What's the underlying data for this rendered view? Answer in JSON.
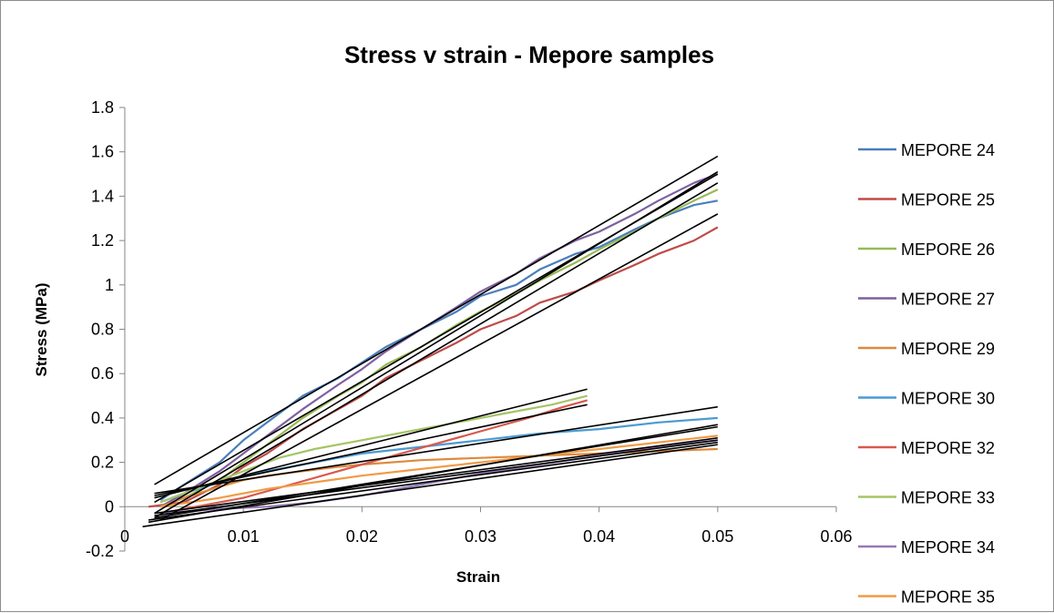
{
  "chart_data": {
    "type": "line",
    "title": "Stress v strain - Mepore samples",
    "xlabel": "Strain",
    "ylabel": "Stress (MPa)",
    "xlim": [
      0,
      0.06
    ],
    "ylim": [
      -0.2,
      1.8
    ],
    "x_ticks": [
      0,
      0.01,
      0.02,
      0.03,
      0.04,
      0.05,
      0.06
    ],
    "x_tick_labels": [
      "0",
      "0.01",
      "0.02",
      "0.03",
      "0.04",
      "0.05",
      "0.06"
    ],
    "y_ticks": [
      -0.2,
      0,
      0.2,
      0.4,
      0.6,
      0.8,
      1,
      1.2,
      1.4,
      1.6,
      1.8
    ],
    "y_tick_labels": [
      "-0.2",
      "0",
      "0.2",
      "0.4",
      "0.6",
      "0.8",
      "1",
      "1.2",
      "1.4",
      "1.6",
      "1.8"
    ],
    "grid": false,
    "legend_position": "right",
    "series": [
      {
        "name": "MEPORE 24",
        "color": "#4a7ebb",
        "x": [
          0.003,
          0.005,
          0.008,
          0.01,
          0.012,
          0.015,
          0.018,
          0.02,
          0.022,
          0.025,
          0.028,
          0.03,
          0.033,
          0.035,
          0.038,
          0.04,
          0.043,
          0.045,
          0.048,
          0.05
        ],
        "y": [
          0.03,
          0.1,
          0.2,
          0.3,
          0.38,
          0.5,
          0.58,
          0.65,
          0.72,
          0.8,
          0.88,
          0.95,
          1.0,
          1.07,
          1.14,
          1.17,
          1.25,
          1.3,
          1.36,
          1.38
        ]
      },
      {
        "name": "MEPORE 25",
        "color": "#be4b48",
        "x": [
          0.002,
          0.005,
          0.008,
          0.01,
          0.012,
          0.015,
          0.018,
          0.02,
          0.022,
          0.025,
          0.028,
          0.03,
          0.033,
          0.035,
          0.038,
          0.04,
          0.043,
          0.045,
          0.048,
          0.05
        ],
        "y": [
          0.0,
          0.02,
          0.1,
          0.18,
          0.24,
          0.35,
          0.44,
          0.5,
          0.58,
          0.66,
          0.74,
          0.8,
          0.86,
          0.92,
          0.97,
          1.02,
          1.09,
          1.14,
          1.2,
          1.26
        ]
      },
      {
        "name": "MEPORE 26",
        "color": "#98b954",
        "x": [
          0.003,
          0.005,
          0.008,
          0.01,
          0.012,
          0.015,
          0.018,
          0.02,
          0.022,
          0.025,
          0.028,
          0.03,
          0.033,
          0.035,
          0.038,
          0.04,
          0.043,
          0.045,
          0.048,
          0.05
        ],
        "y": [
          0.0,
          0.04,
          0.12,
          0.2,
          0.28,
          0.4,
          0.5,
          0.56,
          0.64,
          0.72,
          0.82,
          0.88,
          0.96,
          1.02,
          1.1,
          1.16,
          1.24,
          1.3,
          1.38,
          1.43
        ]
      },
      {
        "name": "MEPORE 27",
        "color": "#7d60a0",
        "x": [
          0.003,
          0.005,
          0.008,
          0.01,
          0.012,
          0.015,
          0.018,
          0.02,
          0.022,
          0.025,
          0.028,
          0.03,
          0.033,
          0.035,
          0.038,
          0.04,
          0.043,
          0.045,
          0.048,
          0.05
        ],
        "y": [
          0.0,
          0.06,
          0.16,
          0.24,
          0.32,
          0.44,
          0.55,
          0.62,
          0.7,
          0.8,
          0.9,
          0.97,
          1.05,
          1.12,
          1.2,
          1.24,
          1.32,
          1.38,
          1.46,
          1.5
        ]
      },
      {
        "name": "MEPORE 29",
        "color": "#dd8a3d",
        "x": [
          0.003,
          0.005,
          0.008,
          0.01,
          0.012,
          0.015,
          0.018,
          0.02,
          0.025,
          0.03,
          0.035,
          0.04,
          0.045,
          0.05
        ],
        "y": [
          0.0,
          0.04,
          0.09,
          0.12,
          0.14,
          0.16,
          0.18,
          0.19,
          0.21,
          0.22,
          0.23,
          0.24,
          0.25,
          0.26
        ]
      },
      {
        "name": "MEPORE 30",
        "color": "#4a9bd1",
        "x": [
          0.003,
          0.005,
          0.008,
          0.01,
          0.012,
          0.015,
          0.018,
          0.02,
          0.025,
          0.03,
          0.035,
          0.04,
          0.045,
          0.05
        ],
        "y": [
          0.02,
          0.06,
          0.11,
          0.14,
          0.16,
          0.19,
          0.22,
          0.24,
          0.27,
          0.3,
          0.33,
          0.35,
          0.38,
          0.4
        ]
      },
      {
        "name": "MEPORE 32",
        "color": "#d9594c",
        "x": [
          0.003,
          0.006,
          0.01,
          0.014,
          0.018,
          0.022,
          0.026,
          0.03,
          0.034,
          0.037,
          0.039
        ],
        "y": [
          -0.03,
          0.0,
          0.04,
          0.1,
          0.16,
          0.22,
          0.28,
          0.34,
          0.4,
          0.45,
          0.48
        ]
      },
      {
        "name": "MEPORE 33",
        "color": "#a5c567",
        "x": [
          0.003,
          0.006,
          0.01,
          0.013,
          0.016,
          0.02,
          0.024,
          0.028,
          0.032,
          0.036,
          0.039
        ],
        "y": [
          0.02,
          0.08,
          0.16,
          0.22,
          0.26,
          0.3,
          0.34,
          0.38,
          0.42,
          0.46,
          0.5
        ]
      },
      {
        "name": "MEPORE 34",
        "color": "#9478b8",
        "x": [
          0.003,
          0.008,
          0.012,
          0.016,
          0.02,
          0.025,
          0.03,
          0.035,
          0.04,
          0.045,
          0.05
        ],
        "y": [
          -0.03,
          -0.01,
          0.0,
          0.02,
          0.05,
          0.1,
          0.15,
          0.19,
          0.23,
          0.27,
          0.3
        ]
      },
      {
        "name": "MEPORE 35",
        "color": "#f09b45",
        "x": [
          0.003,
          0.008,
          0.012,
          0.016,
          0.02,
          0.025,
          0.03,
          0.035,
          0.04,
          0.045,
          0.05
        ],
        "y": [
          0.0,
          0.04,
          0.08,
          0.11,
          0.14,
          0.17,
          0.2,
          0.23,
          0.26,
          0.29,
          0.32
        ]
      }
    ],
    "trendlines": [
      {
        "x": [
          0.0025,
          0.05
        ],
        "y": [
          0.1,
          1.58
        ]
      },
      {
        "x": [
          0.0025,
          0.05
        ],
        "y": [
          -0.03,
          1.51
        ]
      },
      {
        "x": [
          0.0025,
          0.05
        ],
        "y": [
          -0.05,
          1.46
        ]
      },
      {
        "x": [
          0.0025,
          0.05
        ],
        "y": [
          0.02,
          1.5
        ]
      },
      {
        "x": [
          0.003,
          0.05
        ],
        "y": [
          -0.06,
          1.32
        ]
      },
      {
        "x": [
          0.0025,
          0.039
        ],
        "y": [
          0.04,
          0.53
        ]
      },
      {
        "x": [
          0.0025,
          0.039
        ],
        "y": [
          0.05,
          0.46
        ]
      },
      {
        "x": [
          0.0025,
          0.05
        ],
        "y": [
          0.06,
          0.45
        ]
      },
      {
        "x": [
          0.002,
          0.05
        ],
        "y": [
          -0.07,
          0.37
        ]
      },
      {
        "x": [
          0.0025,
          0.05
        ],
        "y": [
          -0.05,
          0.36
        ]
      },
      {
        "x": [
          0.0025,
          0.05
        ],
        "y": [
          -0.03,
          0.31
        ]
      },
      {
        "x": [
          0.0025,
          0.05
        ],
        "y": [
          -0.04,
          0.3
        ]
      },
      {
        "x": [
          0.002,
          0.05
        ],
        "y": [
          -0.06,
          0.29
        ]
      },
      {
        "x": [
          0.0015,
          0.05
        ],
        "y": [
          -0.09,
          0.28
        ]
      }
    ]
  }
}
